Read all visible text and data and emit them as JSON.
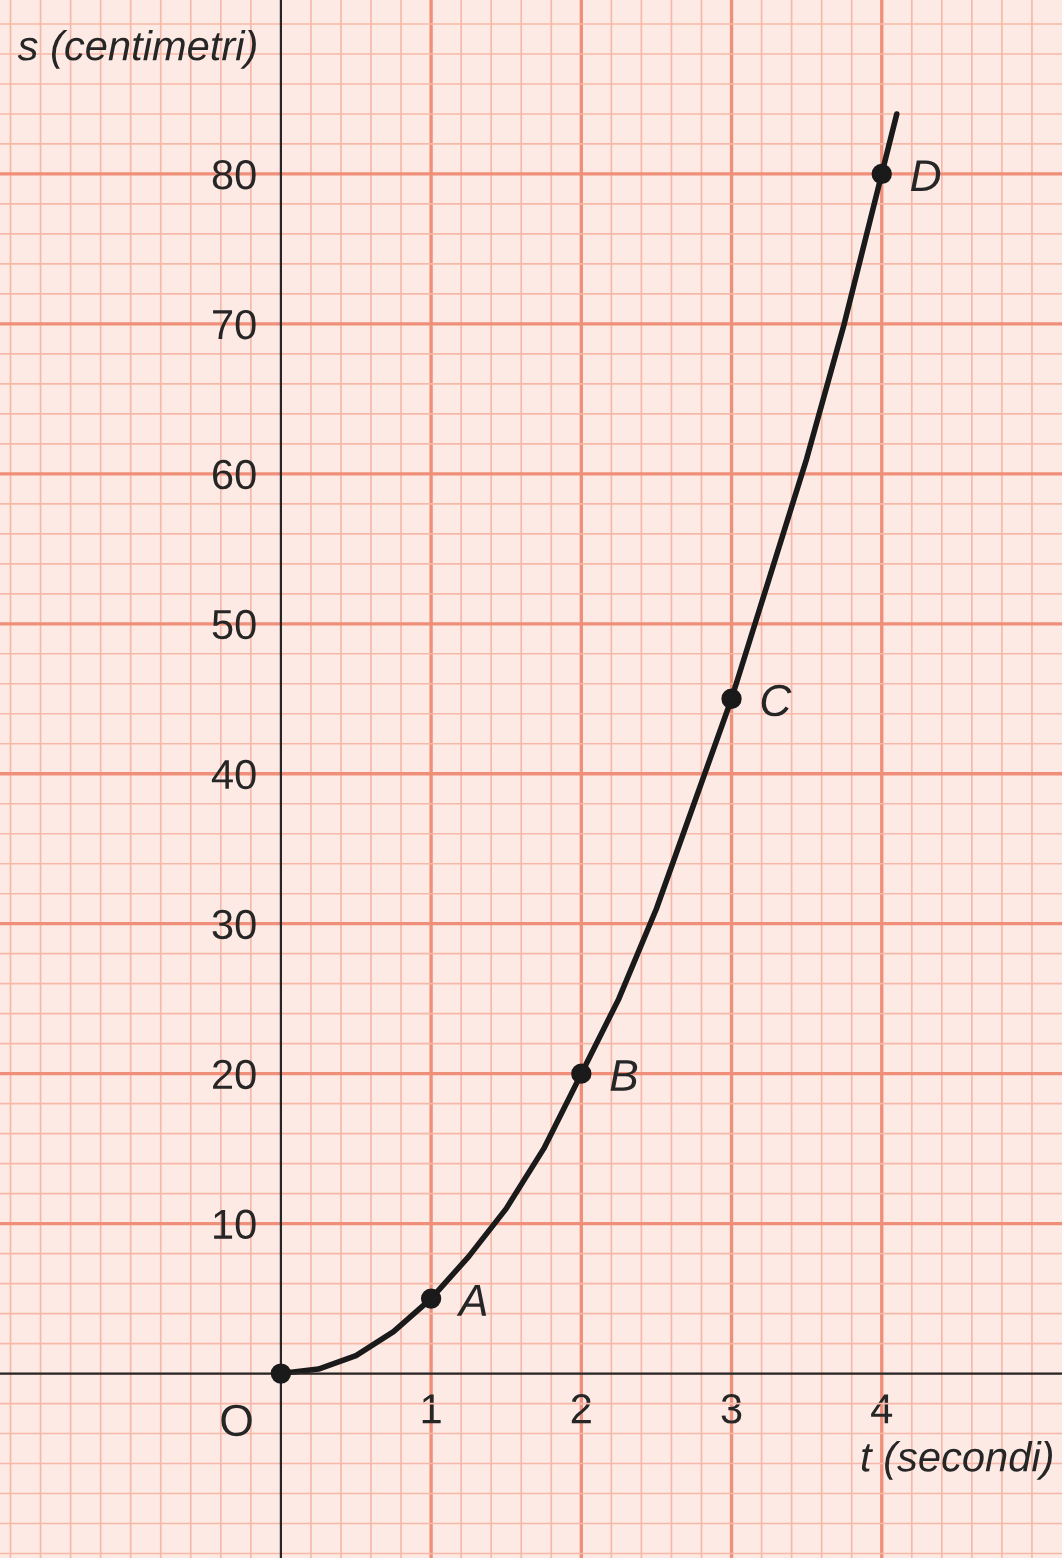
{
  "chart_data": {
    "type": "line",
    "xlabel": "t (secondi)",
    "ylabel": "s (centimetri)",
    "xlim": [
      -1.87,
      5.2
    ],
    "ylim": [
      -12.3,
      91.6
    ],
    "xticks": [
      1,
      2,
      3,
      4,
      {
        "value": -1.8,
        "label": null
      },
      {
        "value": -1.6,
        "label": null
      },
      {
        "value": -1.4,
        "label": null
      },
      {
        "value": -1.2,
        "label": null
      },
      {
        "value": -1,
        "label": null
      },
      {
        "value": -0.8,
        "label": null
      },
      {
        "value": -0.6,
        "label": null
      },
      {
        "value": -0.4,
        "label": null
      },
      {
        "value": -0.2,
        "label": null
      },
      {
        "value": 0,
        "label": null
      },
      {
        "value": 0.2,
        "label": null
      },
      {
        "value": 0.4,
        "label": null
      },
      {
        "value": 0.6,
        "label": null
      },
      {
        "value": 0.8,
        "label": null
      },
      {
        "value": 1.2,
        "label": null
      },
      {
        "value": 1.4,
        "label": null
      },
      {
        "value": 1.6,
        "label": null
      },
      {
        "value": 1.8,
        "label": null
      },
      {
        "value": 2.2,
        "label": null
      },
      {
        "value": 2.4,
        "label": null
      },
      {
        "value": 2.6,
        "label": null
      },
      {
        "value": 2.8,
        "label": null
      },
      {
        "value": 3.2,
        "label": null
      },
      {
        "value": 3.4,
        "label": null
      },
      {
        "value": 3.6,
        "label": null
      },
      {
        "value": 3.8,
        "label": null
      },
      {
        "value": 4.2,
        "label": null
      },
      {
        "value": 4.4,
        "label": null
      },
      {
        "value": 4.6,
        "label": null
      },
      {
        "value": 4.8,
        "label": null
      },
      {
        "value": 5,
        "label": null
      }
    ],
    "yticks": [
      10,
      20,
      30,
      40,
      50,
      60,
      70,
      80,
      {
        "value": -12,
        "label": null
      },
      {
        "value": -10,
        "label": null
      },
      {
        "value": -8,
        "label": null
      },
      {
        "value": -6,
        "label": null
      },
      {
        "value": -4,
        "label": null
      },
      {
        "value": -2,
        "label": null
      },
      {
        "value": 0,
        "label": null
      },
      {
        "value": 2,
        "label": null
      },
      {
        "value": 4,
        "label": null
      },
      {
        "value": 6,
        "label": null
      },
      {
        "value": 8,
        "label": null
      },
      {
        "value": 12,
        "label": null
      },
      {
        "value": 14,
        "label": null
      },
      {
        "value": 16,
        "label": null
      },
      {
        "value": 18,
        "label": null
      },
      {
        "value": 22,
        "label": null
      },
      {
        "value": 24,
        "label": null
      },
      {
        "value": 26,
        "label": null
      },
      {
        "value": 28,
        "label": null
      },
      {
        "value": 32,
        "label": null
      },
      {
        "value": 34,
        "label": null
      },
      {
        "value": 36,
        "label": null
      },
      {
        "value": 38,
        "label": null
      },
      {
        "value": 42,
        "label": null
      },
      {
        "value": 44,
        "label": null
      },
      {
        "value": 46,
        "label": null
      },
      {
        "value": 48,
        "label": null
      },
      {
        "value": 52,
        "label": null
      },
      {
        "value": 54,
        "label": null
      },
      {
        "value": 56,
        "label": null
      },
      {
        "value": 58,
        "label": null
      },
      {
        "value": 62,
        "label": null
      },
      {
        "value": 64,
        "label": null
      },
      {
        "value": 66,
        "label": null
      },
      {
        "value": 68,
        "label": null
      },
      {
        "value": 72,
        "label": null
      },
      {
        "value": 74,
        "label": null
      },
      {
        "value": 76,
        "label": null
      },
      {
        "value": 78,
        "label": null
      },
      {
        "value": 82,
        "label": null
      },
      {
        "value": 84,
        "label": null
      },
      {
        "value": 86,
        "label": null
      },
      {
        "value": 88,
        "label": null
      },
      {
        "value": 90,
        "label": null
      }
    ],
    "grid": true,
    "series": [
      {
        "color": "#1a1a1a",
        "x": [
          0,
          0.25,
          0.5,
          0.75,
          1,
          1.25,
          1.5,
          1.75,
          2,
          2.25,
          2.5,
          2.75,
          3,
          3.25,
          3.5,
          3.75,
          4,
          4.1
        ],
        "values": [
          0,
          0.3,
          1.2,
          2.8,
          5,
          7.8,
          11,
          15,
          20,
          25,
          31,
          38,
          45,
          53,
          61,
          70,
          80,
          84
        ]
      },
      {
        "type": "scatter",
        "color": "#1a1a1a",
        "marker": "circle",
        "x": [
          0,
          1,
          2,
          3,
          4
        ],
        "values": [
          0,
          5,
          20,
          45,
          80
        ]
      }
    ],
    "annotations": [
      {
        "text": "O",
        "x": 0,
        "y": 0
      },
      {
        "text": "A",
        "x": 1,
        "y": 5
      },
      {
        "text": "B",
        "x": 2,
        "y": 20
      },
      {
        "text": "C",
        "x": 3,
        "y": 45
      },
      {
        "text": "D",
        "x": 4,
        "y": 80
      }
    ]
  }
}
